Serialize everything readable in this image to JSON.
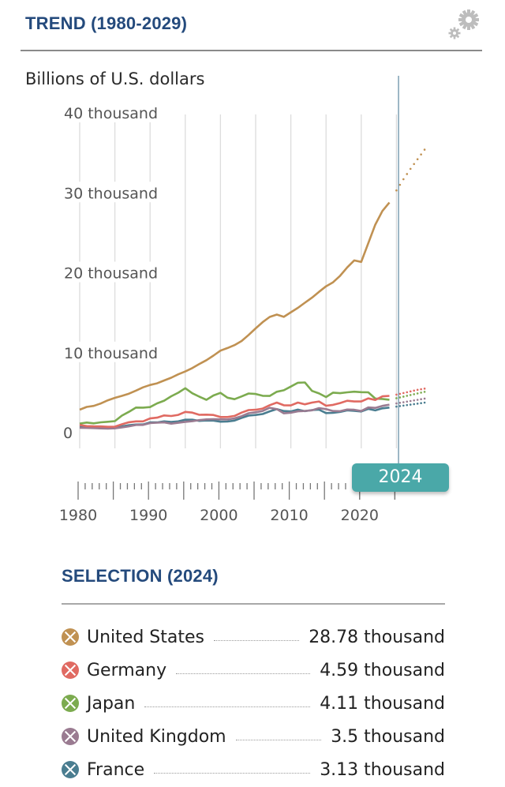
{
  "header": {
    "title": "TREND (1980-2029)",
    "settings_icon": "gear-icon"
  },
  "selection": {
    "title": "SELECTION (2024)",
    "year_badge": "2024",
    "items": [
      {
        "name": "United States",
        "value": "28.78 thousand",
        "color": "#c09152",
        "icon": "close-circle-icon"
      },
      {
        "name": "Germany",
        "value": "4.59 thousand",
        "color": "#e06a62",
        "icon": "close-circle-icon"
      },
      {
        "name": "Japan",
        "value": "4.11 thousand",
        "color": "#7cab4f",
        "icon": "close-circle-icon"
      },
      {
        "name": "United Kingdom",
        "value": "3.5 thousand",
        "color": "#9a7b91",
        "icon": "close-circle-icon"
      },
      {
        "name": "France",
        "value": "3.13 thousand",
        "color": "#4a7d90",
        "icon": "close-circle-icon"
      }
    ]
  },
  "chart_data": {
    "type": "line",
    "title": "TREND (1980-2029)",
    "ylabel": "Billions of U.S. dollars",
    "xlabel": "",
    "ylim": [
      0,
      40000
    ],
    "xlim": [
      1980,
      2029
    ],
    "yticks": [
      {
        "value": 0,
        "label": "0"
      },
      {
        "value": 10000,
        "label": "10 thousand"
      },
      {
        "value": 20000,
        "label": "20 thousand"
      },
      {
        "value": 30000,
        "label": "30 thousand"
      },
      {
        "value": 40000,
        "label": "40 thousand"
      }
    ],
    "xticks": [
      1980,
      1990,
      2000,
      2010,
      2020
    ],
    "grid": "vertical every 5 years",
    "selected_year": 2024,
    "projection_start": 2025,
    "series": [
      {
        "name": "United States",
        "color": "#c09152",
        "x": [
          1980,
          1981,
          1982,
          1983,
          1984,
          1985,
          1986,
          1987,
          1988,
          1989,
          1990,
          1991,
          1992,
          1993,
          1994,
          1995,
          1996,
          1997,
          1998,
          1999,
          2000,
          2001,
          2002,
          2003,
          2004,
          2005,
          2006,
          2007,
          2008,
          2009,
          2010,
          2011,
          2012,
          2013,
          2014,
          2015,
          2016,
          2017,
          2018,
          2019,
          2020,
          2021,
          2022,
          2023,
          2024,
          2025,
          2026,
          2027,
          2028,
          2029
        ],
        "values": [
          2860,
          3210,
          3340,
          3640,
          4040,
          4350,
          4590,
          4870,
          5250,
          5660,
          5960,
          6160,
          6520,
          6860,
          7290,
          7640,
          8070,
          8580,
          9060,
          9630,
          10250,
          10580,
          10940,
          11460,
          12220,
          13040,
          13820,
          14470,
          14770,
          14480,
          15050,
          15600,
          16250,
          16880,
          17610,
          18300,
          18800,
          19610,
          20660,
          21540,
          21350,
          23680,
          26010,
          27720,
          28780,
          30300,
          31700,
          33000,
          34200,
          35400
        ]
      },
      {
        "name": "Germany",
        "color": "#e06a62",
        "x": [
          1980,
          1981,
          1982,
          1983,
          1984,
          1985,
          1986,
          1987,
          1988,
          1989,
          1990,
          1991,
          1992,
          1993,
          1994,
          1995,
          1996,
          1997,
          1998,
          1999,
          2000,
          2001,
          2002,
          2003,
          2004,
          2005,
          2006,
          2007,
          2008,
          2009,
          2010,
          2011,
          2012,
          2013,
          2014,
          2015,
          2016,
          2017,
          2018,
          2019,
          2020,
          2021,
          2022,
          2023,
          2024,
          2025,
          2026,
          2027,
          2028,
          2029
        ],
        "values": [
          950,
          810,
          780,
          770,
          720,
          740,
          1040,
          1290,
          1400,
          1400,
          1770,
          1870,
          2140,
          2070,
          2210,
          2590,
          2500,
          2220,
          2240,
          2200,
          1950,
          1950,
          2080,
          2500,
          2810,
          2850,
          3000,
          3430,
          3750,
          3420,
          3400,
          3750,
          3540,
          3750,
          3890,
          3360,
          3470,
          3690,
          3980,
          3890,
          3890,
          4280,
          4080,
          4530,
          4590,
          4750,
          4950,
          5150,
          5350,
          5500
        ]
      },
      {
        "name": "Japan",
        "color": "#7cab4f",
        "x": [
          1980,
          1981,
          1982,
          1983,
          1984,
          1985,
          1986,
          1987,
          1988,
          1989,
          1990,
          1991,
          1992,
          1993,
          1994,
          1995,
          1996,
          1997,
          1998,
          1999,
          2000,
          2001,
          2002,
          2003,
          2004,
          2005,
          2006,
          2007,
          2008,
          2009,
          2010,
          2011,
          2012,
          2013,
          2014,
          2015,
          2016,
          2017,
          2018,
          2019,
          2020,
          2021,
          2022,
          2023,
          2024,
          2025,
          2026,
          2027,
          2028,
          2029
        ],
        "values": [
          1130,
          1250,
          1160,
          1280,
          1350,
          1430,
          2120,
          2600,
          3130,
          3120,
          3190,
          3650,
          3990,
          4540,
          4990,
          5550,
          4920,
          4490,
          4100,
          4640,
          4970,
          4370,
          4180,
          4520,
          4890,
          4830,
          4600,
          4580,
          5110,
          5290,
          5760,
          6230,
          6270,
          5210,
          4900,
          4440,
          5000,
          4930,
          5040,
          5120,
          5060,
          5040,
          4260,
          4210,
          4110,
          4300,
          4500,
          4700,
          4900,
          5100
        ]
      },
      {
        "name": "United Kingdom",
        "color": "#9a7b91",
        "x": [
          1980,
          1981,
          1982,
          1983,
          1984,
          1985,
          1986,
          1987,
          1988,
          1989,
          1990,
          1991,
          1992,
          1993,
          1994,
          1995,
          1996,
          1997,
          1998,
          1999,
          2000,
          2001,
          2002,
          2003,
          2004,
          2005,
          2006,
          2007,
          2008,
          2009,
          2010,
          2011,
          2012,
          2013,
          2014,
          2015,
          2016,
          2017,
          2018,
          2019,
          2020,
          2021,
          2022,
          2023,
          2024,
          2025,
          2026,
          2027,
          2028,
          2029
        ],
        "values": [
          600,
          580,
          560,
          520,
          490,
          530,
          650,
          780,
          960,
          960,
          1190,
          1230,
          1270,
          1120,
          1220,
          1340,
          1420,
          1560,
          1650,
          1680,
          1660,
          1640,
          1780,
          2050,
          2420,
          2540,
          2710,
          3100,
          2930,
          2410,
          2490,
          2660,
          2710,
          2790,
          3060,
          2930,
          2700,
          2680,
          2880,
          2850,
          2700,
          3140,
          3090,
          3340,
          3500,
          3650,
          3800,
          3950,
          4100,
          4250
        ]
      },
      {
        "name": "France",
        "color": "#4a7d90",
        "x": [
          1980,
          1981,
          1982,
          1983,
          1984,
          1985,
          1986,
          1987,
          1988,
          1989,
          1990,
          1991,
          1992,
          1993,
          1994,
          1995,
          1996,
          1997,
          1998,
          1999,
          2000,
          2001,
          2002,
          2003,
          2004,
          2005,
          2006,
          2007,
          2008,
          2009,
          2010,
          2011,
          2012,
          2013,
          2014,
          2015,
          2016,
          2017,
          2018,
          2019,
          2020,
          2021,
          2022,
          2023,
          2024,
          2025,
          2026,
          2027,
          2028,
          2029
        ],
        "values": [
          700,
          620,
          590,
          560,
          530,
          550,
          770,
          920,
          1010,
          1020,
          1270,
          1270,
          1400,
          1330,
          1400,
          1610,
          1610,
          1460,
          1510,
          1500,
          1360,
          1380,
          1500,
          1840,
          2120,
          2200,
          2320,
          2660,
          2930,
          2700,
          2650,
          2870,
          2680,
          2810,
          2860,
          2440,
          2470,
          2590,
          2790,
          2730,
          2640,
          2960,
          2780,
          3030,
          3130,
          3250,
          3380,
          3500,
          3620,
          3750
        ]
      }
    ]
  }
}
